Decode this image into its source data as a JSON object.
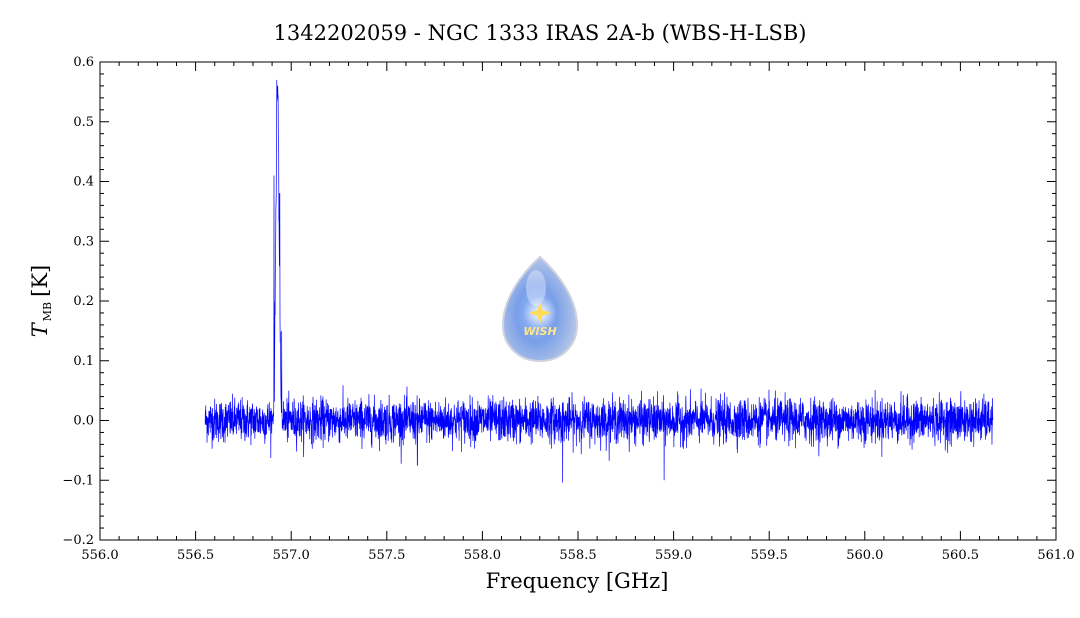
{
  "chart_data": {
    "type": "line",
    "title": "1342202059 - NGC 1333 IRAS 2A-b (WBS-H-LSB)",
    "xlabel": "Frequency [GHz]",
    "ylabel_main": "T",
    "ylabel_sub": "MB",
    "ylabel_unit": "[K]",
    "xlim": [
      556.0,
      561.0
    ],
    "ylim": [
      -0.2,
      0.6
    ],
    "x_ticks": [
      "556.0",
      "556.5",
      "557.0",
      "557.5",
      "558.0",
      "558.5",
      "559.0",
      "559.5",
      "560.0",
      "560.5",
      "561.0"
    ],
    "y_ticks": [
      "−0.2",
      "−0.1",
      "0.0",
      "0.1",
      "0.2",
      "0.3",
      "0.4",
      "0.5",
      "0.6"
    ],
    "grid": false,
    "line_color": "#0000ff",
    "series": [
      {
        "x_range": [
          556.55,
          560.67
        ],
        "baseline_rms": 0.018,
        "peaks": [
          {
            "x": 556.925,
            "y": 0.57
          },
          {
            "x": 556.91,
            "y": 0.41
          },
          {
            "x": 556.94,
            "y": 0.38
          },
          {
            "x": 556.95,
            "y": 0.15
          }
        ],
        "dips": [
          {
            "x": 558.42,
            "y": -0.104
          },
          {
            "x": 558.95,
            "y": -0.1
          },
          {
            "x": 557.66,
            "y": -0.075
          }
        ]
      }
    ],
    "logo": {
      "text": "WISH",
      "icon": "wish-drop-logo"
    }
  }
}
